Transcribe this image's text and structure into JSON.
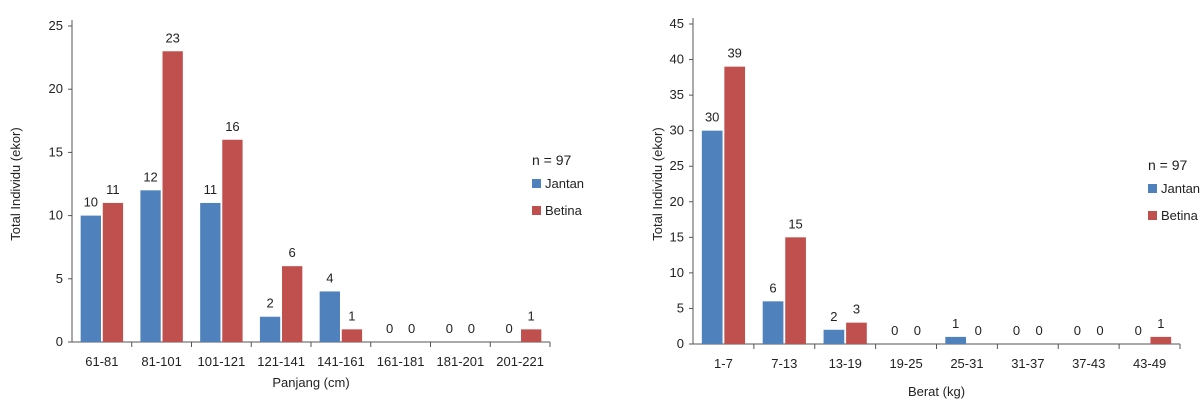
{
  "chart_data": [
    {
      "type": "bar",
      "categories": [
        "61-81",
        "81-101",
        "101-121",
        "121-141",
        "141-161",
        "161-181",
        "181-201",
        "201-221"
      ],
      "series": [
        {
          "name": "Jantan",
          "values": [
            10,
            12,
            11,
            2,
            4,
            0,
            0,
            0
          ],
          "color": "#4f81bd"
        },
        {
          "name": "Betina",
          "values": [
            11,
            23,
            16,
            6,
            1,
            0,
            0,
            1
          ],
          "color": "#c0504d"
        }
      ],
      "title": "",
      "xlabel": "Panjang (cm)",
      "ylabel": "Total Individu (ekor)",
      "ylim": [
        0,
        25
      ],
      "yticks": [
        0,
        5,
        10,
        15,
        20,
        25
      ],
      "legend_title": "n = 97",
      "legend_position": "right",
      "grid": false
    },
    {
      "type": "bar",
      "categories": [
        "1-7",
        "7-13",
        "13-19",
        "19-25",
        "25-31",
        "31-37",
        "37-43",
        "43-49"
      ],
      "series": [
        {
          "name": "Jantan",
          "values": [
            30,
            6,
            2,
            0,
            1,
            0,
            0,
            0
          ],
          "color": "#4f81bd"
        },
        {
          "name": "Betina",
          "values": [
            39,
            15,
            3,
            0,
            0,
            0,
            0,
            1
          ],
          "color": "#c0504d"
        }
      ],
      "title": "",
      "xlabel": "Berat (kg)",
      "ylabel": "Total Individu (ekor)",
      "ylim": [
        0,
        45
      ],
      "yticks": [
        0,
        5,
        10,
        15,
        20,
        25,
        30,
        35,
        40,
        45
      ],
      "legend_title": "n = 97",
      "legend_position": "right",
      "grid": false
    }
  ]
}
